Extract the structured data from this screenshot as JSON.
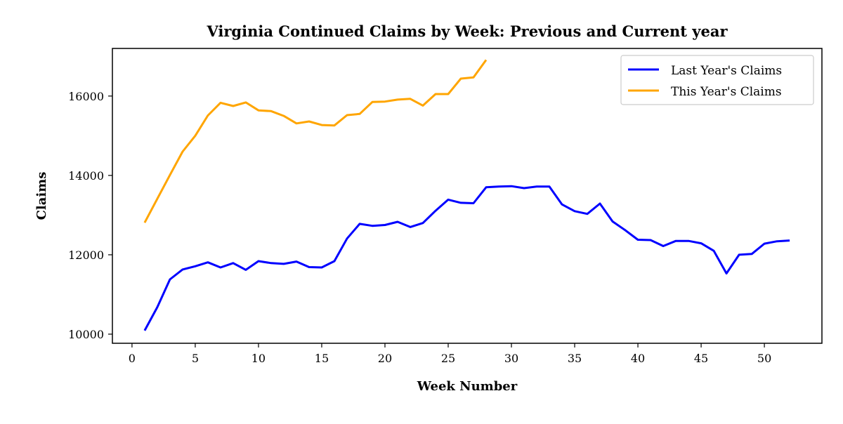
{
  "chart_data": {
    "type": "line",
    "title": "Virginia Continued Claims by Week: Previous and Current year",
    "xlabel": "Week Number",
    "ylabel": "Claims",
    "xlim": [
      -1.55,
      54.55
    ],
    "ylim": [
      9770,
      17200
    ],
    "xticks": [
      0,
      5,
      10,
      15,
      20,
      25,
      30,
      35,
      40,
      45,
      50
    ],
    "yticks": [
      10000,
      12000,
      14000,
      16000
    ],
    "grid": false,
    "legend_position": "top-right",
    "series": [
      {
        "name": "Last Year's Claims",
        "color": "#0000ff",
        "x": [
          1,
          2,
          3,
          4,
          5,
          6,
          7,
          8,
          9,
          10,
          11,
          12,
          13,
          14,
          15,
          16,
          17,
          18,
          19,
          20,
          21,
          22,
          23,
          24,
          25,
          26,
          27,
          28,
          29,
          30,
          31,
          32,
          33,
          34,
          35,
          36,
          37,
          38,
          39,
          40,
          41,
          42,
          43,
          44,
          45,
          46,
          47,
          48,
          49,
          50,
          51,
          52
        ],
        "values": [
          10090,
          10680,
          11380,
          11630,
          11710,
          11810,
          11680,
          11790,
          11620,
          11840,
          11790,
          11770,
          11830,
          11690,
          11680,
          11840,
          12410,
          12780,
          12730,
          12750,
          12830,
          12700,
          12800,
          13110,
          13390,
          13310,
          13300,
          13700,
          13720,
          13730,
          13680,
          13720,
          13720,
          13270,
          13100,
          13030,
          13290,
          12840,
          12620,
          12380,
          12370,
          12220,
          12350,
          12350,
          12290,
          12100,
          11530,
          12000,
          12020,
          12280,
          12340,
          12360
        ]
      },
      {
        "name": "This Year's Claims",
        "color": "#ffa500",
        "x": [
          1,
          2,
          3,
          4,
          5,
          6,
          7,
          8,
          9,
          10,
          11,
          12,
          13,
          14,
          15,
          16,
          17,
          18,
          19,
          20,
          21,
          22,
          23,
          24,
          25,
          26,
          27,
          28
        ],
        "values": [
          12810,
          13410,
          14010,
          14600,
          15000,
          15510,
          15830,
          15750,
          15840,
          15640,
          15620,
          15500,
          15310,
          15360,
          15270,
          15260,
          15520,
          15550,
          15850,
          15860,
          15910,
          15930,
          15760,
          16050,
          16050,
          16440,
          16470,
          16910
        ]
      }
    ]
  }
}
